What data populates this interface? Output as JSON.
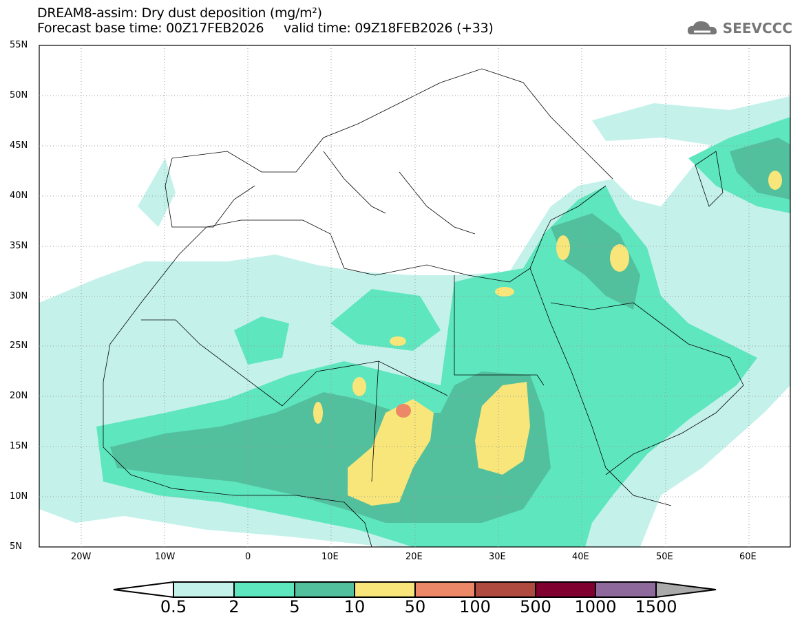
{
  "header": {
    "title": "DREAM8-assim: Dry dust deposition (mg/m²)",
    "subtitle": "Forecast base time: 00Z17FEB2026     valid time: 09Z18FEB2026 (+33)",
    "logo": "SEEVCCC"
  },
  "axes": {
    "lat": [
      "55N",
      "50N",
      "45N",
      "40N",
      "35N",
      "30N",
      "25N",
      "20N",
      "15N",
      "10N",
      "5N"
    ],
    "lon": [
      "20W",
      "10W",
      "0",
      "10E",
      "20E",
      "30E",
      "40E",
      "50E",
      "60E"
    ]
  },
  "colorbar": {
    "labels": [
      "0.5",
      "2",
      "5",
      "10",
      "50",
      "100",
      "500",
      "1000",
      "1500"
    ],
    "colors": [
      "#ffffff",
      "#c4f2eb",
      "#5ee6be",
      "#52bf9d",
      "#f8e67a",
      "#ec8867",
      "#ae4a40",
      "#800030",
      "#8e6a9c",
      "#aaaaaa"
    ]
  }
}
